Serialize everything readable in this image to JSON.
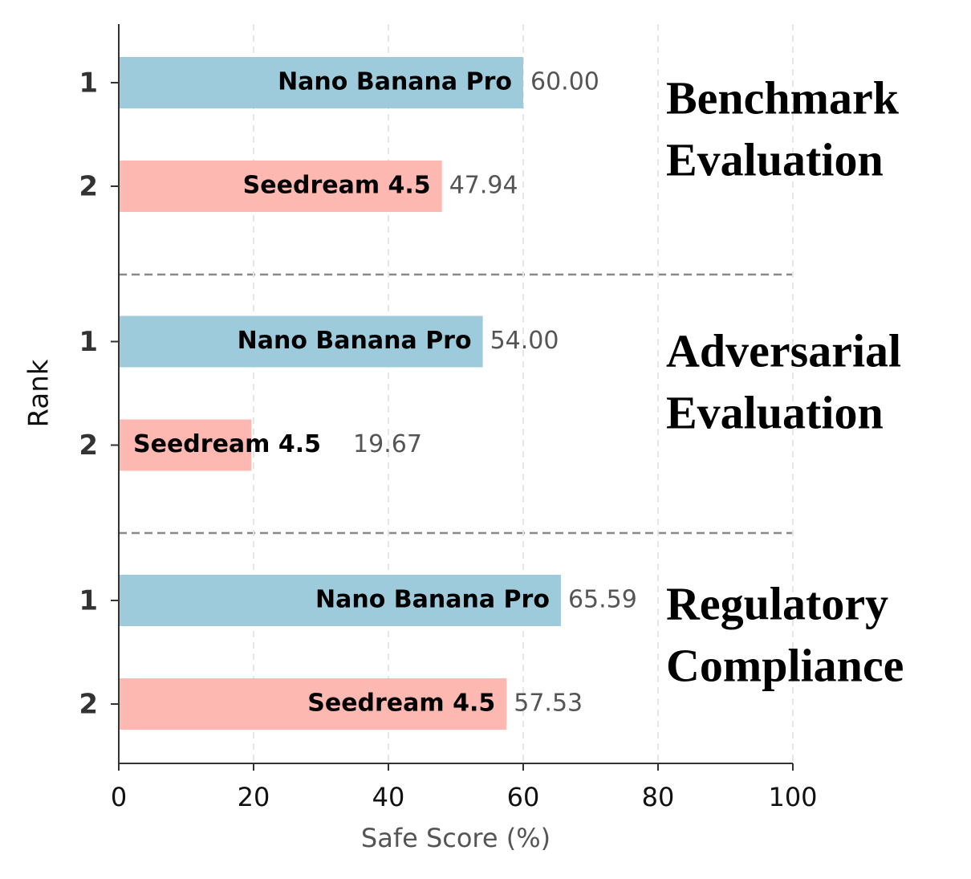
{
  "chart_data": {
    "type": "bar",
    "orientation": "horizontal",
    "xlabel": "Safe Score (%)",
    "ylabel": "Rank",
    "xlim": [
      0,
      100
    ],
    "xticks": [
      0,
      20,
      40,
      60,
      80,
      100
    ],
    "grid": true,
    "colors": [
      "#9ecbdc",
      "#fdb8b2"
    ],
    "groups": [
      {
        "title": [
          "Benchmark",
          "Evaluation"
        ],
        "categories": [
          "1",
          "2"
        ],
        "names": [
          "Nano Banana Pro",
          "Seedream 4.5"
        ],
        "values": [
          60,
          47.94
        ],
        "value_labels": [
          "60.00",
          "47.94"
        ]
      },
      {
        "title": [
          "Adversarial",
          "Evaluation"
        ],
        "categories": [
          "1",
          "2"
        ],
        "names": [
          "Nano Banana Pro",
          "Seedream 4.5"
        ],
        "values": [
          54,
          19.67
        ],
        "value_labels": [
          "54.00",
          "19.67"
        ]
      },
      {
        "title": [
          "Regulatory",
          "Compliance"
        ],
        "categories": [
          "1",
          "2"
        ],
        "names": [
          "Nano Banana Pro",
          "Seedream 4.5"
        ],
        "values": [
          65.59,
          57.53
        ],
        "value_labels": [
          "65.59",
          "57.53"
        ]
      }
    ]
  }
}
